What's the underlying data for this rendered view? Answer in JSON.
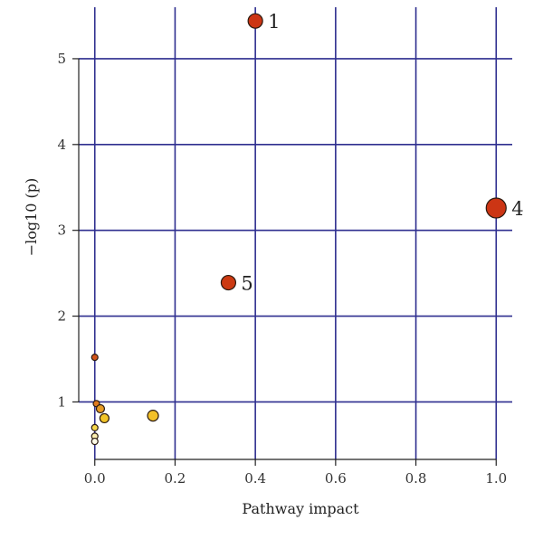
{
  "chart_data": {
    "type": "scatter",
    "title": "",
    "xlabel": "Pathway impact",
    "ylabel": "−log10 (p)",
    "xlim": [
      -0.04,
      1.04
    ],
    "ylim": [
      0.33,
      5.6
    ],
    "x_ticks": [
      0.0,
      0.2,
      0.4,
      0.6,
      0.8,
      1.0
    ],
    "x_tick_labels": [
      "0.0",
      "0.2",
      "0.4",
      "0.6",
      "0.8",
      "1.0"
    ],
    "y_ticks": [
      1,
      2,
      3,
      4,
      5
    ],
    "y_tick_labels": [
      "1",
      "2",
      "3",
      "4",
      "5"
    ],
    "grid": true,
    "grid_color": "#2e2e8f",
    "points": [
      {
        "x": 0.4,
        "y": 5.44,
        "label": "1",
        "color": "#cc3514"
      },
      {
        "x": 1.0,
        "y": 3.26,
        "label": "4",
        "color": "#cc3514"
      },
      {
        "x": 0.333,
        "y": 2.39,
        "label": "5",
        "color": "#cc3a12"
      },
      {
        "x": 0.0,
        "y": 1.52,
        "label": "",
        "color": "#d2541a"
      },
      {
        "x": 0.004,
        "y": 0.98,
        "label": "",
        "color": "#e07a1e"
      },
      {
        "x": 0.014,
        "y": 0.92,
        "label": "",
        "color": "#e69a24"
      },
      {
        "x": 0.024,
        "y": 0.81,
        "label": "",
        "color": "#f2c428"
      },
      {
        "x": 0.145,
        "y": 0.84,
        "label": "",
        "color": "#f2c028"
      },
      {
        "x": 0.0,
        "y": 0.7,
        "label": "",
        "color": "#f7d84a"
      },
      {
        "x": 0.0,
        "y": 0.6,
        "label": "",
        "color": "#fbeeb0"
      },
      {
        "x": 0.0,
        "y": 0.54,
        "label": "",
        "color": "#fffbe8"
      }
    ]
  }
}
